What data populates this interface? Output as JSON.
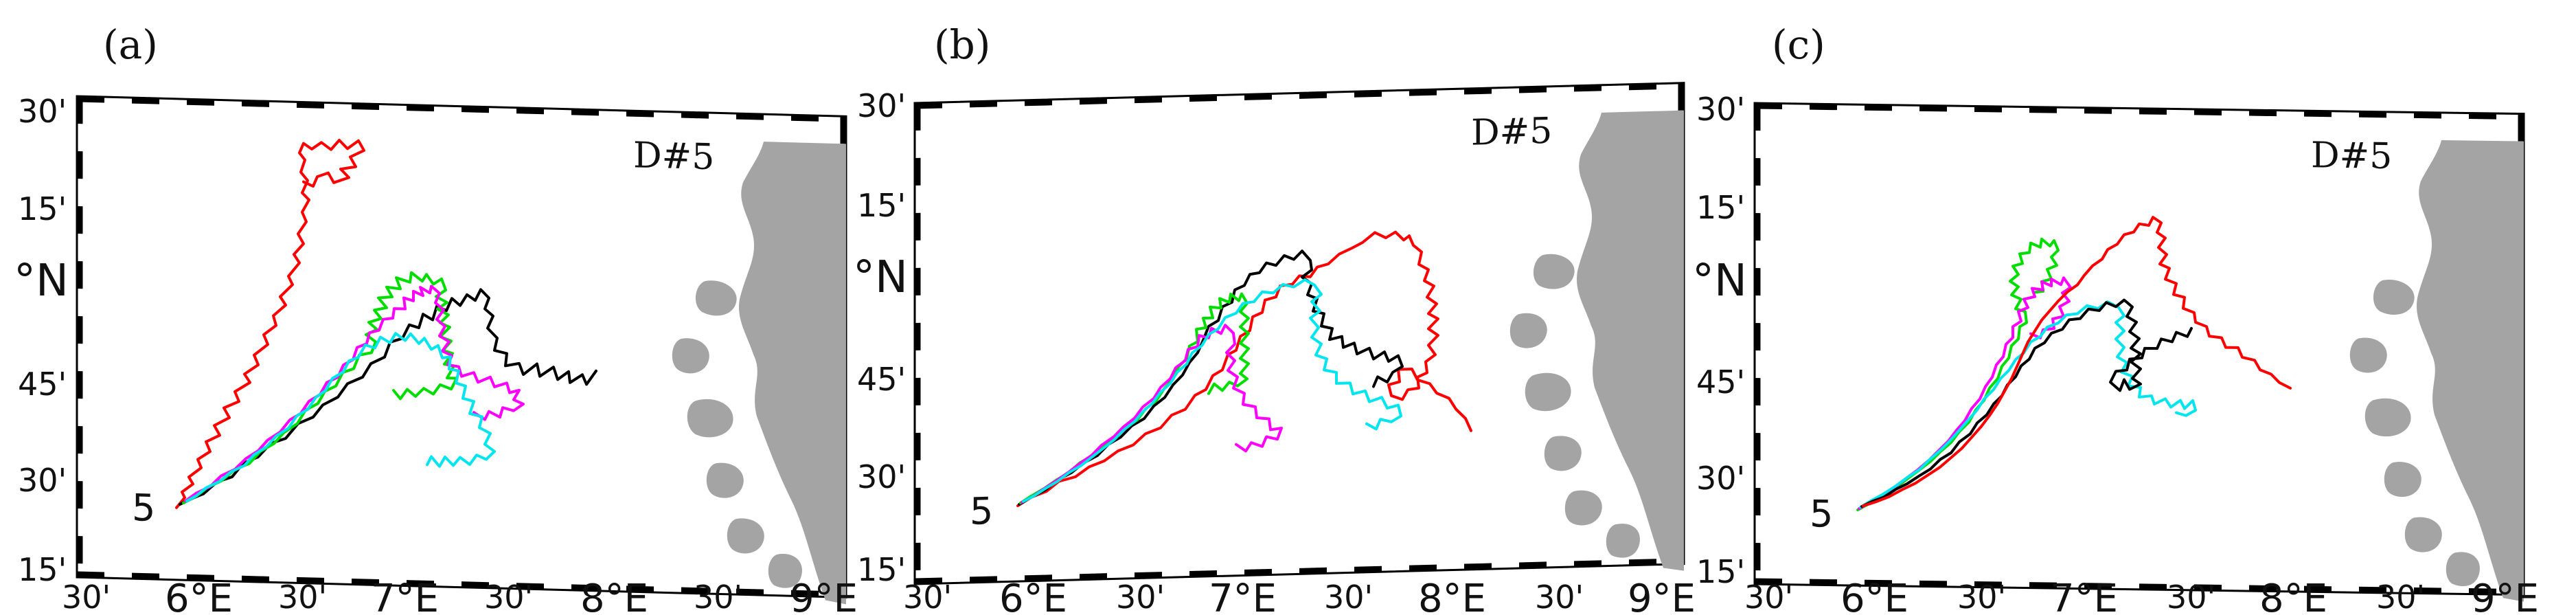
{
  "panels": [
    {
      "letter": "(a)",
      "drifter_label": "D#5",
      "start_label": "5",
      "lat_labels": [
        "30'",
        "15'",
        "°N",
        "45'",
        "30'",
        "15'"
      ],
      "lon_labels": [
        "30'",
        "6°E",
        "30'",
        "7°E",
        "30'",
        "8°E",
        "30'",
        "9°E"
      ]
    },
    {
      "letter": "(b)",
      "drifter_label": "D#5",
      "start_label": "5",
      "lat_labels": [
        "30'",
        "15'",
        "°N",
        "45'",
        "30'",
        "15'"
      ],
      "lon_labels": [
        "30'",
        "6°E",
        "30'",
        "7°E",
        "30'",
        "8°E",
        "30'",
        "9°E"
      ]
    },
    {
      "letter": "(c)",
      "drifter_label": "D#5",
      "start_label": "5",
      "lat_labels": [
        "30'",
        "15'",
        "°N",
        "45'",
        "30'",
        "15'"
      ],
      "lon_labels": [
        "30'",
        "6°E",
        "30'",
        "7°E",
        "30'",
        "8°E",
        "30'",
        "9°E"
      ]
    }
  ],
  "colors": {
    "track_red": "#ff0000",
    "track_black": "#000000",
    "track_green": "#00dd00",
    "track_magenta": "#ff00ff",
    "track_cyan": "#00e5ee",
    "land": "#a4a4a4",
    "frame": "#000000"
  }
}
